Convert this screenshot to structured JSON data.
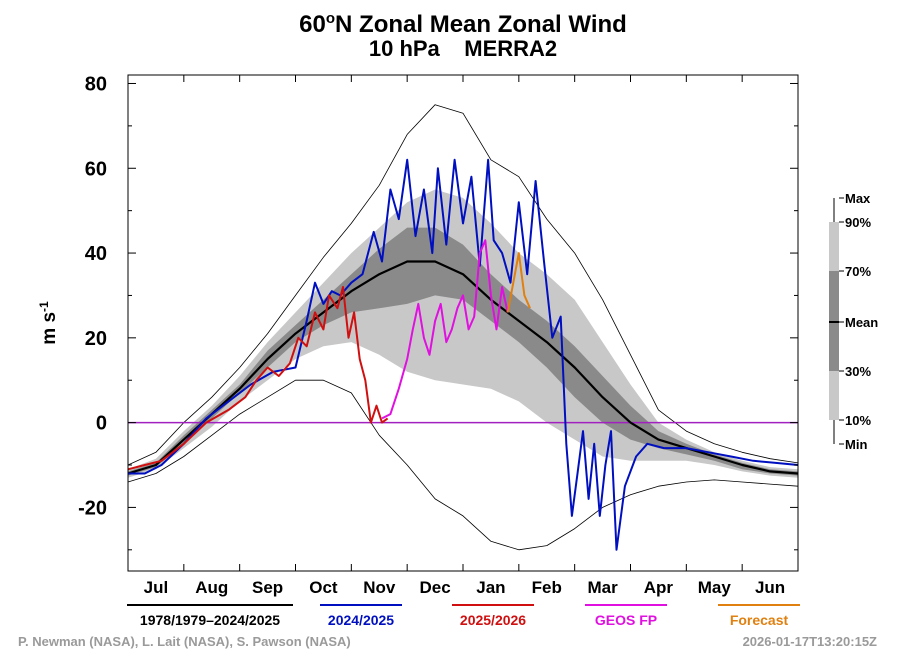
{
  "chart_data": {
    "type": "line",
    "title": "60",
    "title_superscript": "o",
    "title_rest": "N Zonal Mean Zonal Wind",
    "subtitle": "10 hPa    MERRA2",
    "ylabel": "m s",
    "ylabel_superscript": "-1",
    "ylim": [
      -35,
      82
    ],
    "yticks": [
      -20,
      0,
      20,
      40,
      60,
      80
    ],
    "ytick_labels": [
      "-20",
      "0",
      "20",
      "40",
      "60",
      "80"
    ],
    "xlim": [
      0,
      12
    ],
    "months": [
      "Jul",
      "Aug",
      "Sep",
      "Oct",
      "Nov",
      "Dec",
      "Jan",
      "Feb",
      "Mar",
      "Apr",
      "May",
      "Jun"
    ],
    "zero_line_color": "#a020c0",
    "band_scale": {
      "labels": [
        "Max",
        "90%",
        "70%",
        "Mean",
        "30%",
        "10%",
        "Min"
      ],
      "colors": {
        "band_10_90": "#c8c8c8",
        "band_30_70": "#8a8a8a"
      }
    },
    "climatology": {
      "x": [
        0,
        0.5,
        1,
        1.5,
        2,
        2.5,
        3,
        3.5,
        4,
        4.5,
        5,
        5.5,
        6,
        6.5,
        7,
        7.5,
        8,
        8.5,
        9,
        9.5,
        10,
        10.5,
        11,
        11.5,
        12
      ],
      "mean": [
        -12,
        -10,
        -4,
        2,
        8,
        15,
        21,
        26,
        31,
        35,
        38,
        38,
        35,
        29,
        24,
        19,
        13,
        6,
        0,
        -4,
        -6,
        -8,
        -10,
        -11.5,
        -12
      ],
      "p10": [
        -13,
        -11,
        -6,
        -1,
        5,
        10,
        15,
        18,
        19,
        16,
        12,
        10,
        9,
        8,
        5,
        0,
        -4,
        -8,
        -9,
        -9,
        -9,
        -10,
        -11.5,
        -12.5,
        -13
      ],
      "p30": [
        -12.5,
        -10.5,
        -5,
        1,
        7,
        13,
        19,
        23,
        26,
        27,
        28,
        30,
        29,
        24,
        19,
        13,
        6,
        0,
        -4,
        -6,
        -7.5,
        -9,
        -11,
        -12,
        -12.5
      ],
      "p70": [
        -11.5,
        -9.5,
        -3,
        3,
        9,
        17,
        23,
        29,
        35,
        41,
        46,
        46,
        42,
        35,
        29,
        24,
        18,
        11,
        4,
        -2,
        -5,
        -7.5,
        -9.5,
        -11,
        -11.5
      ],
      "p90": [
        -11,
        -8.5,
        -2,
        4,
        11,
        19,
        26,
        33,
        40,
        46,
        52,
        55,
        53,
        47,
        40,
        35,
        29,
        19,
        9,
        0,
        -4,
        -7,
        -9,
        -10.5,
        -11
      ],
      "max": [
        -10,
        -7,
        0,
        6,
        13,
        21,
        30,
        39,
        47,
        56,
        68,
        75,
        73,
        62,
        58,
        48,
        40,
        29,
        16,
        3,
        -2,
        -5,
        -7,
        -8.5,
        -9.5
      ],
      "min": [
        -14,
        -12,
        -8,
        -3,
        2,
        6,
        10,
        10,
        7,
        -3,
        -10,
        -18,
        -22,
        -28,
        -30,
        -29,
        -25,
        -20,
        -17,
        -15,
        -14,
        -13.5,
        -14,
        -14.5,
        -15
      ]
    },
    "series": [
      {
        "name": "2024/2025",
        "color": "#0010c0",
        "x": [
          0,
          0.3,
          0.6,
          1.0,
          1.4,
          1.8,
          2.2,
          2.6,
          3.0,
          3.2,
          3.35,
          3.5,
          3.65,
          3.8,
          4.0,
          4.2,
          4.4,
          4.55,
          4.7,
          4.85,
          5.0,
          5.15,
          5.3,
          5.45,
          5.55,
          5.7,
          5.85,
          6.0,
          6.15,
          6.3,
          6.45,
          6.55,
          6.7,
          6.85,
          7.0,
          7.15,
          7.3,
          7.45,
          7.6,
          7.75,
          7.85,
          7.95,
          8.05,
          8.15,
          8.25,
          8.35,
          8.45,
          8.55,
          8.65,
          8.75,
          8.9,
          9.1,
          9.3,
          9.6,
          10.0,
          10.4,
          10.8,
          11.2,
          11.6,
          12.0
        ],
        "y": [
          -12,
          -12,
          -10,
          -5,
          1,
          5,
          9,
          12,
          13,
          24,
          33,
          28,
          31,
          30,
          33,
          35,
          45,
          38,
          55,
          48,
          62,
          44,
          55,
          40,
          60,
          42,
          62,
          47,
          58,
          37,
          62,
          43,
          40,
          33,
          52,
          35,
          57,
          38,
          20,
          25,
          -5,
          -22,
          -12,
          -2,
          -18,
          -5,
          -22,
          -10,
          -2,
          -30,
          -15,
          -8,
          -5,
          -6,
          -6,
          -7,
          -8,
          -9,
          -9.5,
          -10
        ]
      },
      {
        "name": "2025/2026",
        "color": "#d01010",
        "x": [
          0,
          0.3,
          0.6,
          1.0,
          1.4,
          1.8,
          2.1,
          2.3,
          2.5,
          2.7,
          2.9,
          3.05,
          3.2,
          3.35,
          3.5,
          3.6,
          3.75,
          3.85,
          3.95,
          4.05,
          4.15,
          4.25,
          4.35,
          4.45,
          4.55,
          4.65
        ],
        "y": [
          -11,
          -10,
          -9,
          -5,
          0,
          3,
          6,
          10,
          13,
          11,
          14,
          20,
          18,
          26,
          22,
          30,
          27,
          32,
          20,
          26,
          15,
          10,
          0,
          4,
          0,
          1
        ]
      },
      {
        "name": "GEOS FP",
        "color": "#e010e0",
        "x": [
          4.55,
          4.7,
          4.85,
          5.0,
          5.1,
          5.2,
          5.3,
          5.4,
          5.5,
          5.6,
          5.7,
          5.8,
          5.9,
          6.0,
          6.1,
          6.2,
          6.3,
          6.4,
          6.5,
          6.6,
          6.7,
          6.8
        ],
        "y": [
          1,
          2,
          8,
          15,
          22,
          28,
          20,
          16,
          24,
          28,
          19,
          22,
          27,
          30,
          22,
          25,
          40,
          43,
          30,
          22,
          32,
          26
        ]
      },
      {
        "name": "Forecast",
        "color": "#e08010",
        "x": [
          6.8,
          6.9,
          7.0,
          7.1,
          7.2
        ],
        "y": [
          26,
          33,
          40,
          30,
          27
        ]
      }
    ],
    "legend": [
      {
        "label": "1978/1979–2024/2025",
        "color": "#000000",
        "line": true
      },
      {
        "label": "2024/2025",
        "color": "#0010c0",
        "line": true
      },
      {
        "label": "2025/2026",
        "color": "#d01010",
        "line": true
      },
      {
        "label": "GEOS FP",
        "color": "#e010e0",
        "line": true
      },
      {
        "label": "Forecast",
        "color": "#e08010",
        "line": true
      }
    ]
  },
  "credits": {
    "authors": "P. Newman (NASA), L. Lait (NASA), S. Pawson (NASA)",
    "timestamp": "2026-01-17T13:20:15Z"
  }
}
